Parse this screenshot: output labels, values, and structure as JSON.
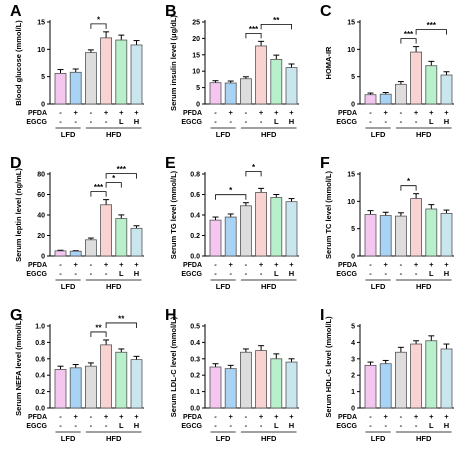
{
  "colors": {
    "lfd": "#f4c6f0",
    "lfd_pfda": "#a9d3f5",
    "hfd": "#dddddd",
    "hfd_pfda": "#f9d2d2",
    "hfd_pfda_egcg_l": "#b8f0cc",
    "hfd_pfda_egcg_h": "#c9e6ee",
    "axis": "#000000"
  },
  "groups": [
    "LFD",
    "HFD"
  ],
  "row_labels": [
    "PFDA",
    "EGCG"
  ],
  "treatment_marks": {
    "pfda": [
      "-",
      "+",
      "-",
      "+",
      "+",
      "+"
    ],
    "egcg": [
      "-",
      "-",
      "-",
      "-",
      "L",
      "H"
    ]
  },
  "chart_data": [
    {
      "type": "bar",
      "panel": "A",
      "ylabel": "Blood glucose (mmol/L)",
      "ylim": [
        0,
        15
      ],
      "yticks": [
        "0",
        "5",
        "10",
        "15"
      ],
      "values": [
        5.6,
        5.8,
        9.4,
        12.1,
        11.7,
        10.8
      ],
      "errors": [
        0.7,
        0.6,
        0.5,
        1.1,
        0.9,
        0.8
      ],
      "sig": [
        {
          "from": 2,
          "to": 3,
          "label": "*"
        }
      ]
    },
    {
      "type": "bar",
      "panel": "B",
      "ylabel": "Serum insulin level (μg/dL)",
      "ylim": [
        0,
        25
      ],
      "yticks": [
        "0",
        "5",
        "10",
        "15",
        "20",
        "25"
      ],
      "values": [
        6.5,
        6.4,
        7.7,
        17.7,
        13.6,
        11.1
      ],
      "errors": [
        0.6,
        0.6,
        0.6,
        1.4,
        1.3,
        1.1
      ],
      "sig": [
        {
          "from": 2,
          "to": 3,
          "label": "***"
        },
        {
          "from": 3,
          "to": 5,
          "label": "**"
        }
      ]
    },
    {
      "type": "bar",
      "panel": "C",
      "ylabel": "HOMA-IR",
      "ylim": [
        0,
        15
      ],
      "yticks": [
        "0",
        "5",
        "10",
        "15"
      ],
      "values": [
        1.7,
        1.8,
        3.6,
        9.5,
        7.0,
        5.3
      ],
      "errors": [
        0.3,
        0.3,
        0.5,
        1.0,
        0.8,
        0.6
      ],
      "sig": [
        {
          "from": 2,
          "to": 3,
          "label": "***"
        },
        {
          "from": 3,
          "to": 5,
          "label": "***"
        }
      ]
    },
    {
      "type": "bar",
      "panel": "D",
      "ylabel": "Serum leptin level (ng/mL)",
      "ylim": [
        0,
        80
      ],
      "yticks": [
        "0",
        "20",
        "40",
        "60",
        "80"
      ],
      "values": [
        5.0,
        4.7,
        15.8,
        50.0,
        36.5,
        27.0
      ],
      "errors": [
        0.6,
        0.5,
        1.7,
        5.0,
        3.6,
        2.5
      ],
      "sig": [
        {
          "from": 2,
          "to": 3,
          "label": "***"
        },
        {
          "from": 3,
          "to": 4,
          "label": "*"
        },
        {
          "from": 3,
          "to": 5,
          "label": "***"
        }
      ]
    },
    {
      "type": "bar",
      "panel": "E",
      "ylabel": "Serum TG level (mmol/L)",
      "ylim": [
        0,
        0.8
      ],
      "yticks": [
        "0.0",
        "0.2",
        "0.4",
        "0.6",
        "0.8"
      ],
      "values": [
        0.35,
        0.38,
        0.49,
        0.62,
        0.57,
        0.53
      ],
      "errors": [
        0.03,
        0.03,
        0.03,
        0.04,
        0.03,
        0.03
      ],
      "sig": [
        {
          "from": 0,
          "to": 2,
          "label": "*"
        },
        {
          "from": 2,
          "to": 3,
          "label": "*"
        }
      ]
    },
    {
      "type": "bar",
      "panel": "F",
      "ylabel": "Serum TC level (mmol/L)",
      "ylim": [
        0,
        15
      ],
      "yticks": [
        "0",
        "5",
        "10",
        "15"
      ],
      "values": [
        7.6,
        7.4,
        7.3,
        10.5,
        8.6,
        7.8
      ],
      "errors": [
        0.7,
        0.6,
        0.6,
        0.9,
        0.8,
        0.6
      ],
      "sig": [
        {
          "from": 2,
          "to": 3,
          "label": "*"
        }
      ]
    },
    {
      "type": "bar",
      "panel": "G",
      "ylabel": "Serum NEFA level (mmol/L)",
      "ylim": [
        0,
        1.0
      ],
      "yticks": [
        "0.0",
        "0.2",
        "0.4",
        "0.6",
        "0.8",
        "1.0"
      ],
      "values": [
        0.47,
        0.49,
        0.51,
        0.77,
        0.68,
        0.59
      ],
      "errors": [
        0.04,
        0.04,
        0.04,
        0.06,
        0.04,
        0.04
      ],
      "sig": [
        {
          "from": 2,
          "to": 3,
          "label": "**"
        },
        {
          "from": 3,
          "to": 5,
          "label": "**"
        }
      ]
    },
    {
      "type": "bar",
      "panel": "H",
      "ylabel": "Serum LDL-C level (mmol/L)",
      "ylim": [
        0,
        0.5
      ],
      "yticks": [
        "0.0",
        "0.1",
        "0.2",
        "0.3",
        "0.4",
        "0.5"
      ],
      "values": [
        0.25,
        0.24,
        0.34,
        0.35,
        0.3,
        0.28
      ],
      "errors": [
        0.02,
        0.02,
        0.02,
        0.03,
        0.03,
        0.02
      ],
      "sig": []
    },
    {
      "type": "bar",
      "panel": "I",
      "ylabel": "Serum HDL-C level (mmol/L)",
      "ylim": [
        0,
        5
      ],
      "yticks": [
        "0",
        "1",
        "2",
        "3",
        "4",
        "5"
      ],
      "values": [
        2.6,
        2.7,
        3.4,
        3.9,
        4.1,
        3.6
      ],
      "errors": [
        0.2,
        0.2,
        0.3,
        0.2,
        0.3,
        0.3
      ],
      "sig": []
    }
  ]
}
